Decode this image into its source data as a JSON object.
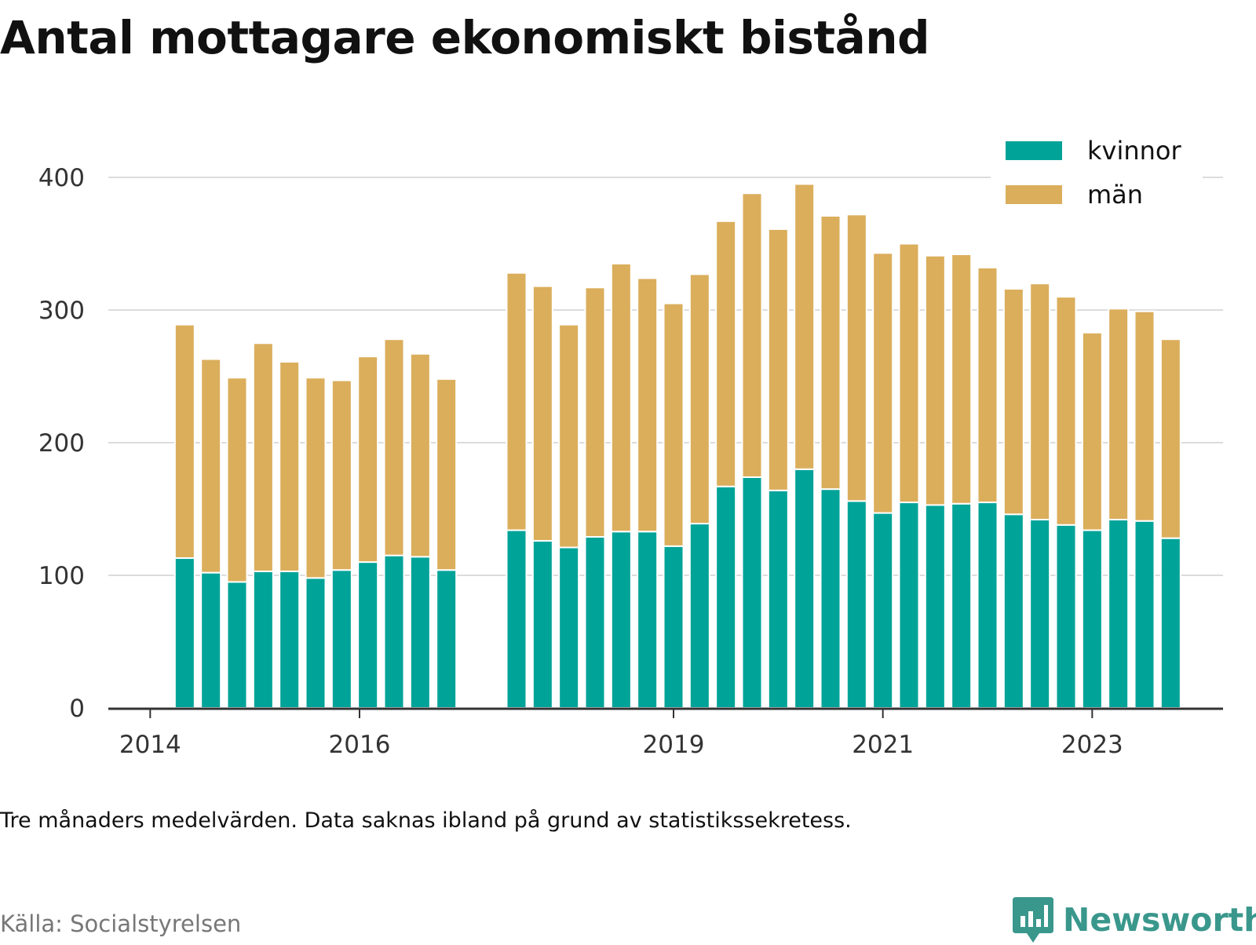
{
  "title": "Antal mottagare ekonomiskt bistånd",
  "note": "Tre månaders medelvärden. Data saknas ibland på grund av statistikssekretess.",
  "source": "Källa: Socialstyrelsen",
  "brand": {
    "name": "Newsworthy",
    "icon": "newsworthy-logo-icon",
    "color": "#3a978c"
  },
  "chart_data": {
    "type": "bar",
    "stacked": true,
    "title": "Antal mottagare ekonomiskt bistånd",
    "xlabel": "",
    "ylabel": "",
    "ylim": [
      0,
      400
    ],
    "yticks": [
      0,
      100,
      200,
      300,
      400
    ],
    "grid": true,
    "legend_position": "top-right",
    "xticks": [
      {
        "label": "2014",
        "value": 2014.0
      },
      {
        "label": "2016",
        "value": 2016.0
      },
      {
        "label": "2019",
        "value": 2019.0
      },
      {
        "label": "2021",
        "value": 2021.0
      },
      {
        "label": "2023",
        "value": 2023.0
      }
    ],
    "x": [
      2014.33,
      2014.58,
      2014.83,
      2015.08,
      2015.33,
      2015.58,
      2015.83,
      2016.08,
      2016.33,
      2016.58,
      2016.83,
      2017.5,
      2017.75,
      2018.0,
      2018.25,
      2018.5,
      2018.75,
      2019.0,
      2019.25,
      2019.5,
      2019.75,
      2020.0,
      2020.25,
      2020.5,
      2020.75,
      2021.0,
      2021.25,
      2021.5,
      2021.75,
      2022.0,
      2022.25,
      2022.5,
      2022.75,
      2023.0,
      2023.25,
      2023.5,
      2023.75
    ],
    "series": [
      {
        "name": "kvinnor",
        "color": "#00a398",
        "values": [
          113,
          102,
          95,
          103,
          103,
          98,
          104,
          110,
          115,
          114,
          104,
          134,
          126,
          121,
          129,
          133,
          133,
          122,
          139,
          167,
          174,
          164,
          180,
          165,
          156,
          147,
          155,
          153,
          154,
          155,
          146,
          142,
          138,
          134,
          142,
          141,
          128
        ]
      },
      {
        "name": "män",
        "color": "#dbae5c",
        "values": [
          176,
          161,
          154,
          172,
          158,
          151,
          143,
          155,
          163,
          153,
          144,
          194,
          192,
          168,
          188,
          202,
          191,
          183,
          188,
          200,
          214,
          197,
          215,
          206,
          216,
          196,
          195,
          188,
          188,
          177,
          170,
          178,
          172,
          149,
          159,
          158,
          150
        ]
      }
    ]
  }
}
